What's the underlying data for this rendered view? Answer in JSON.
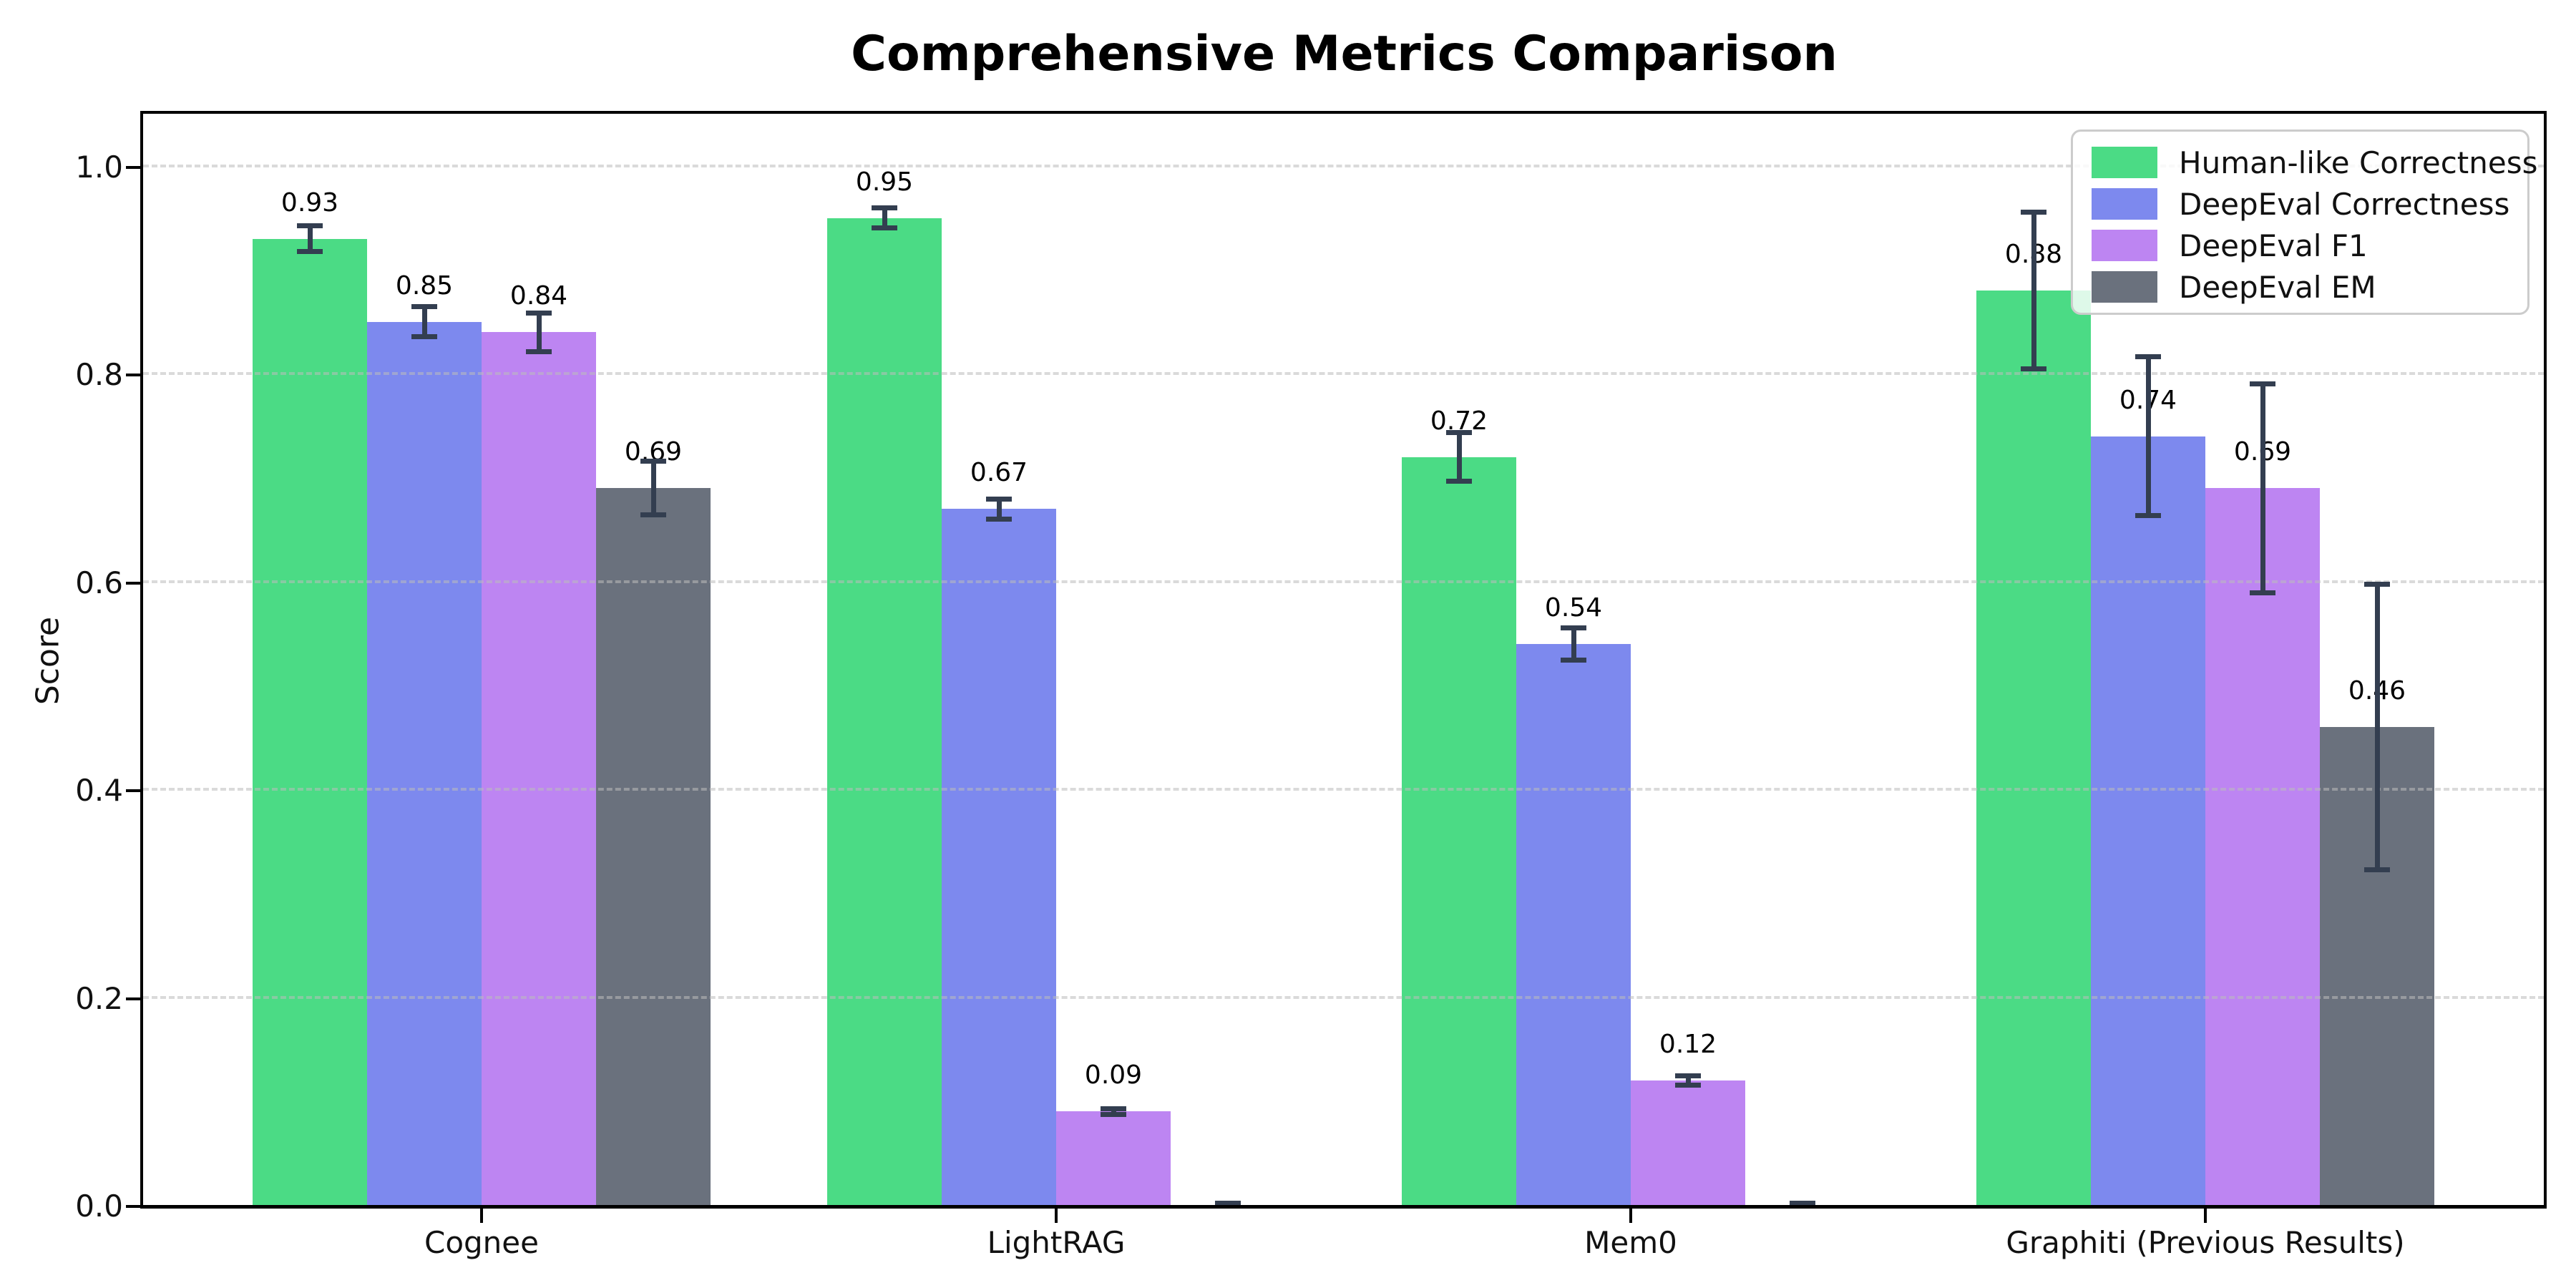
{
  "chart_data": {
    "type": "bar",
    "title": "Comprehensive Metrics Comparison",
    "xlabel": "",
    "ylabel": "Score",
    "categories": [
      "Cognee",
      "LightRAG",
      "Mem0",
      "Graphiti (Previous Results)"
    ],
    "ytick_labels": [
      "0.0",
      "0.2",
      "0.4",
      "0.6",
      "0.8",
      "1.0"
    ],
    "yticks": [
      0.0,
      0.2,
      0.4,
      0.6,
      0.8,
      1.0
    ],
    "ylim": [
      0,
      1.05
    ],
    "grid": "horizontal-dashed",
    "legend_position": "upper-right",
    "error_bar_color": "#333e50",
    "series": [
      {
        "name": "Human-like Correctness",
        "color": "#4bdb85",
        "values": [
          0.93,
          0.95,
          0.72,
          0.88
        ],
        "errors": [
          0.015,
          0.012,
          0.026,
          0.078
        ],
        "labels": [
          "0.93",
          "0.95",
          "0.72",
          "0.88"
        ]
      },
      {
        "name": "DeepEval Correctness",
        "color": "#7d89ee",
        "values": [
          0.85,
          0.67,
          0.54,
          0.74
        ],
        "errors": [
          0.017,
          0.012,
          0.018,
          0.079
        ],
        "labels": [
          "0.85",
          "0.67",
          "0.54",
          "0.74"
        ]
      },
      {
        "name": "DeepEval F1",
        "color": "#bd85f2",
        "values": [
          0.84,
          0.09,
          0.12,
          0.69
        ],
        "errors": [
          0.021,
          0.005,
          0.007,
          0.103
        ],
        "labels": [
          "0.84",
          "0.09",
          "0.12",
          "0.69"
        ]
      },
      {
        "name": "DeepEval EM",
        "color": "#6a717d",
        "values": [
          0.69,
          0.0,
          0.0,
          0.46
        ],
        "errors": [
          0.028,
          0.004,
          0.004,
          0.14
        ],
        "labels": [
          "0.69",
          "",
          "",
          "0.46"
        ]
      }
    ]
  }
}
